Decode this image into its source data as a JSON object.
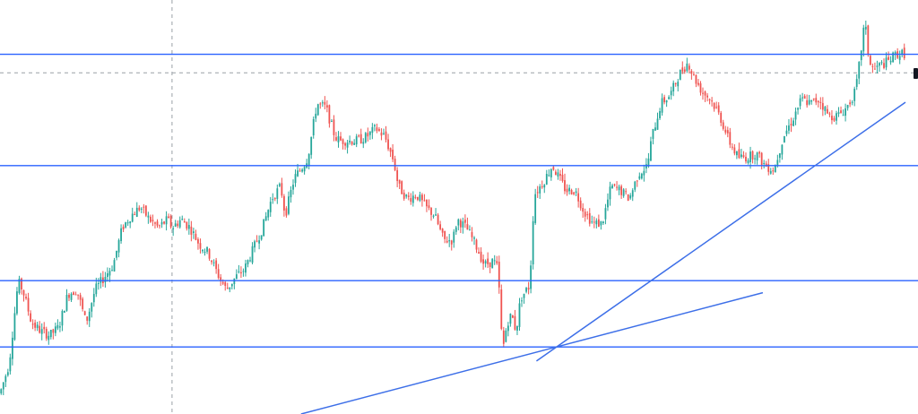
{
  "chart_data": {
    "type": "candlestick",
    "title": "",
    "xlabel": "",
    "ylabel": "",
    "ylim": [
      0,
      100
    ],
    "grid": false,
    "colors": {
      "up": "#26a69a",
      "down": "#ef5350",
      "level_line": "#2962ff",
      "trend_line": "#3d6fe8",
      "crosshair": "#9aa0a6",
      "price_marker": "#131722"
    },
    "horizontal_levels": [
      86.9,
      60.0,
      32.2,
      16.2
    ],
    "crosshair": {
      "x": 38,
      "y": 82.4
    },
    "trendlines": [
      {
        "x1": 118.5,
        "y1": 12.8,
        "x2": 200.0,
        "y2": 75.3
      },
      {
        "x1": 66.5,
        "y1": 0.0,
        "x2": 168.5,
        "y2": 29.3
      }
    ],
    "ohlc_close_path": [
      [
        0,
        5
      ],
      [
        2,
        12
      ],
      [
        4,
        32
      ],
      [
        5,
        30
      ],
      [
        7,
        22
      ],
      [
        9,
        20
      ],
      [
        11,
        19
      ],
      [
        13,
        21
      ],
      [
        15,
        29
      ],
      [
        17,
        30
      ],
      [
        19,
        22
      ],
      [
        21,
        30
      ],
      [
        23,
        33
      ],
      [
        25,
        36
      ],
      [
        27,
        45
      ],
      [
        29,
        48
      ],
      [
        31,
        50
      ],
      [
        33,
        47
      ],
      [
        35,
        45
      ],
      [
        37,
        47
      ],
      [
        38,
        45
      ],
      [
        40,
        47
      ],
      [
        42,
        45
      ],
      [
        44,
        41
      ],
      [
        46,
        39
      ],
      [
        48,
        34
      ],
      [
        50,
        30
      ],
      [
        52,
        33
      ],
      [
        54,
        35
      ],
      [
        56,
        40
      ],
      [
        58,
        45
      ],
      [
        60,
        52
      ],
      [
        62,
        55
      ],
      [
        63,
        48
      ],
      [
        65,
        57
      ],
      [
        67,
        60
      ],
      [
        68,
        62
      ],
      [
        70,
        75
      ],
      [
        72,
        74
      ],
      [
        74,
        67
      ],
      [
        75,
        66
      ],
      [
        77,
        66
      ],
      [
        79,
        66
      ],
      [
        81,
        67
      ],
      [
        83,
        69
      ],
      [
        85,
        67
      ],
      [
        87,
        61
      ],
      [
        88,
        55
      ],
      [
        90,
        52
      ],
      [
        92,
        53
      ],
      [
        94,
        50
      ],
      [
        96,
        48
      ],
      [
        98,
        42
      ],
      [
        100,
        42
      ],
      [
        101,
        47
      ],
      [
        103,
        45
      ],
      [
        105,
        41
      ],
      [
        107,
        36
      ],
      [
        109,
        37
      ],
      [
        110,
        35
      ],
      [
        111,
        15
      ],
      [
        112,
        22
      ],
      [
        113,
        24
      ],
      [
        114,
        20
      ],
      [
        115,
        28
      ],
      [
        117,
        31
      ],
      [
        118,
        53
      ],
      [
        120,
        56
      ],
      [
        122,
        60
      ],
      [
        123,
        58
      ],
      [
        125,
        54
      ],
      [
        127,
        54
      ],
      [
        129,
        49
      ],
      [
        131,
        46
      ],
      [
        133,
        46
      ],
      [
        135,
        55
      ],
      [
        137,
        54
      ],
      [
        139,
        52
      ],
      [
        141,
        58
      ],
      [
        143,
        60
      ],
      [
        144,
        67
      ],
      [
        146,
        75
      ],
      [
        148,
        77
      ],
      [
        150,
        82
      ],
      [
        152,
        85
      ],
      [
        153,
        82
      ],
      [
        155,
        78
      ],
      [
        157,
        76
      ],
      [
        159,
        72
      ],
      [
        161,
        66
      ],
      [
        163,
        62
      ],
      [
        165,
        62
      ],
      [
        167,
        63
      ],
      [
        169,
        60
      ],
      [
        171,
        59
      ],
      [
        173,
        67
      ],
      [
        175,
        71
      ],
      [
        177,
        76
      ],
      [
        179,
        75
      ],
      [
        181,
        76
      ],
      [
        183,
        72
      ],
      [
        185,
        72
      ],
      [
        187,
        74
      ],
      [
        189,
        78
      ],
      [
        190,
        86
      ],
      [
        191,
        95
      ],
      [
        192,
        85
      ],
      [
        193,
        83
      ],
      [
        194,
        84
      ],
      [
        196,
        85
      ],
      [
        198,
        87
      ]
    ]
  }
}
